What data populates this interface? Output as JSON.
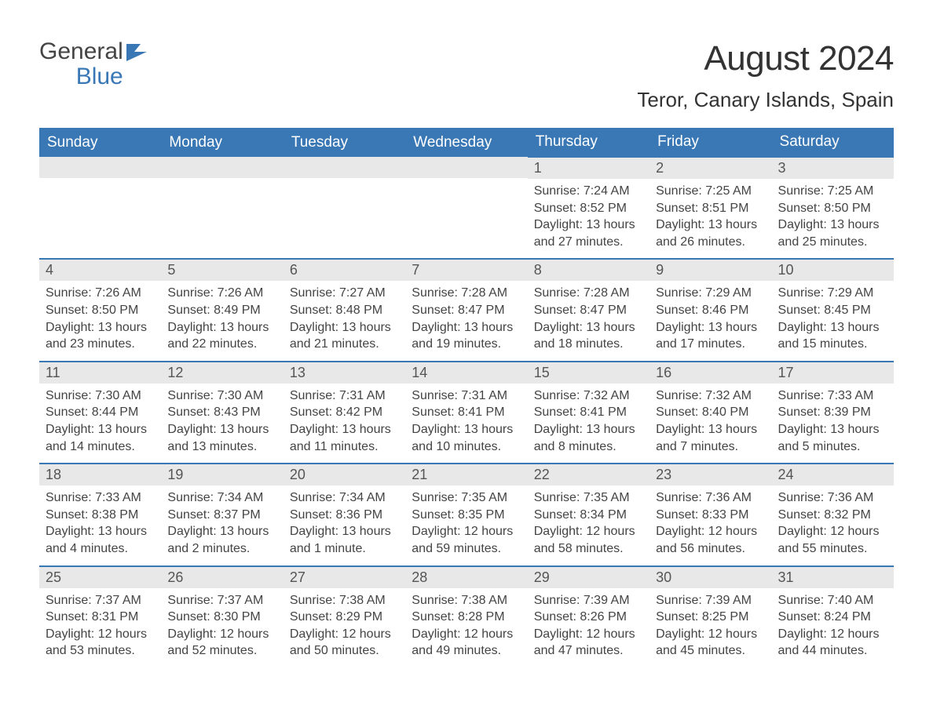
{
  "logo": {
    "word1": "General",
    "word2": "Blue"
  },
  "title": "August 2024",
  "location": "Teror, Canary Islands, Spain",
  "colors": {
    "header_bg": "#3a78b5",
    "header_text": "#ffffff",
    "day_border": "#3a78b5",
    "day_number_bg": "#e8e8e8",
    "body_text": "#444444",
    "background": "#ffffff"
  },
  "typography": {
    "body_fontsize": 16,
    "title_fontsize": 44,
    "location_fontsize": 26
  },
  "weekdays": [
    "Sunday",
    "Monday",
    "Tuesday",
    "Wednesday",
    "Thursday",
    "Friday",
    "Saturday"
  ],
  "weeks": [
    [
      null,
      null,
      null,
      null,
      {
        "d": "1",
        "sunrise": "Sunrise: 7:24 AM",
        "sunset": "Sunset: 8:52 PM",
        "daylight": "Daylight: 13 hours and 27 minutes."
      },
      {
        "d": "2",
        "sunrise": "Sunrise: 7:25 AM",
        "sunset": "Sunset: 8:51 PM",
        "daylight": "Daylight: 13 hours and 26 minutes."
      },
      {
        "d": "3",
        "sunrise": "Sunrise: 7:25 AM",
        "sunset": "Sunset: 8:50 PM",
        "daylight": "Daylight: 13 hours and 25 minutes."
      }
    ],
    [
      {
        "d": "4",
        "sunrise": "Sunrise: 7:26 AM",
        "sunset": "Sunset: 8:50 PM",
        "daylight": "Daylight: 13 hours and 23 minutes."
      },
      {
        "d": "5",
        "sunrise": "Sunrise: 7:26 AM",
        "sunset": "Sunset: 8:49 PM",
        "daylight": "Daylight: 13 hours and 22 minutes."
      },
      {
        "d": "6",
        "sunrise": "Sunrise: 7:27 AM",
        "sunset": "Sunset: 8:48 PM",
        "daylight": "Daylight: 13 hours and 21 minutes."
      },
      {
        "d": "7",
        "sunrise": "Sunrise: 7:28 AM",
        "sunset": "Sunset: 8:47 PM",
        "daylight": "Daylight: 13 hours and 19 minutes."
      },
      {
        "d": "8",
        "sunrise": "Sunrise: 7:28 AM",
        "sunset": "Sunset: 8:47 PM",
        "daylight": "Daylight: 13 hours and 18 minutes."
      },
      {
        "d": "9",
        "sunrise": "Sunrise: 7:29 AM",
        "sunset": "Sunset: 8:46 PM",
        "daylight": "Daylight: 13 hours and 17 minutes."
      },
      {
        "d": "10",
        "sunrise": "Sunrise: 7:29 AM",
        "sunset": "Sunset: 8:45 PM",
        "daylight": "Daylight: 13 hours and 15 minutes."
      }
    ],
    [
      {
        "d": "11",
        "sunrise": "Sunrise: 7:30 AM",
        "sunset": "Sunset: 8:44 PM",
        "daylight": "Daylight: 13 hours and 14 minutes."
      },
      {
        "d": "12",
        "sunrise": "Sunrise: 7:30 AM",
        "sunset": "Sunset: 8:43 PM",
        "daylight": "Daylight: 13 hours and 13 minutes."
      },
      {
        "d": "13",
        "sunrise": "Sunrise: 7:31 AM",
        "sunset": "Sunset: 8:42 PM",
        "daylight": "Daylight: 13 hours and 11 minutes."
      },
      {
        "d": "14",
        "sunrise": "Sunrise: 7:31 AM",
        "sunset": "Sunset: 8:41 PM",
        "daylight": "Daylight: 13 hours and 10 minutes."
      },
      {
        "d": "15",
        "sunrise": "Sunrise: 7:32 AM",
        "sunset": "Sunset: 8:41 PM",
        "daylight": "Daylight: 13 hours and 8 minutes."
      },
      {
        "d": "16",
        "sunrise": "Sunrise: 7:32 AM",
        "sunset": "Sunset: 8:40 PM",
        "daylight": "Daylight: 13 hours and 7 minutes."
      },
      {
        "d": "17",
        "sunrise": "Sunrise: 7:33 AM",
        "sunset": "Sunset: 8:39 PM",
        "daylight": "Daylight: 13 hours and 5 minutes."
      }
    ],
    [
      {
        "d": "18",
        "sunrise": "Sunrise: 7:33 AM",
        "sunset": "Sunset: 8:38 PM",
        "daylight": "Daylight: 13 hours and 4 minutes."
      },
      {
        "d": "19",
        "sunrise": "Sunrise: 7:34 AM",
        "sunset": "Sunset: 8:37 PM",
        "daylight": "Daylight: 13 hours and 2 minutes."
      },
      {
        "d": "20",
        "sunrise": "Sunrise: 7:34 AM",
        "sunset": "Sunset: 8:36 PM",
        "daylight": "Daylight: 13 hours and 1 minute."
      },
      {
        "d": "21",
        "sunrise": "Sunrise: 7:35 AM",
        "sunset": "Sunset: 8:35 PM",
        "daylight": "Daylight: 12 hours and 59 minutes."
      },
      {
        "d": "22",
        "sunrise": "Sunrise: 7:35 AM",
        "sunset": "Sunset: 8:34 PM",
        "daylight": "Daylight: 12 hours and 58 minutes."
      },
      {
        "d": "23",
        "sunrise": "Sunrise: 7:36 AM",
        "sunset": "Sunset: 8:33 PM",
        "daylight": "Daylight: 12 hours and 56 minutes."
      },
      {
        "d": "24",
        "sunrise": "Sunrise: 7:36 AM",
        "sunset": "Sunset: 8:32 PM",
        "daylight": "Daylight: 12 hours and 55 minutes."
      }
    ],
    [
      {
        "d": "25",
        "sunrise": "Sunrise: 7:37 AM",
        "sunset": "Sunset: 8:31 PM",
        "daylight": "Daylight: 12 hours and 53 minutes."
      },
      {
        "d": "26",
        "sunrise": "Sunrise: 7:37 AM",
        "sunset": "Sunset: 8:30 PM",
        "daylight": "Daylight: 12 hours and 52 minutes."
      },
      {
        "d": "27",
        "sunrise": "Sunrise: 7:38 AM",
        "sunset": "Sunset: 8:29 PM",
        "daylight": "Daylight: 12 hours and 50 minutes."
      },
      {
        "d": "28",
        "sunrise": "Sunrise: 7:38 AM",
        "sunset": "Sunset: 8:28 PM",
        "daylight": "Daylight: 12 hours and 49 minutes."
      },
      {
        "d": "29",
        "sunrise": "Sunrise: 7:39 AM",
        "sunset": "Sunset: 8:26 PM",
        "daylight": "Daylight: 12 hours and 47 minutes."
      },
      {
        "d": "30",
        "sunrise": "Sunrise: 7:39 AM",
        "sunset": "Sunset: 8:25 PM",
        "daylight": "Daylight: 12 hours and 45 minutes."
      },
      {
        "d": "31",
        "sunrise": "Sunrise: 7:40 AM",
        "sunset": "Sunset: 8:24 PM",
        "daylight": "Daylight: 12 hours and 44 minutes."
      }
    ]
  ]
}
